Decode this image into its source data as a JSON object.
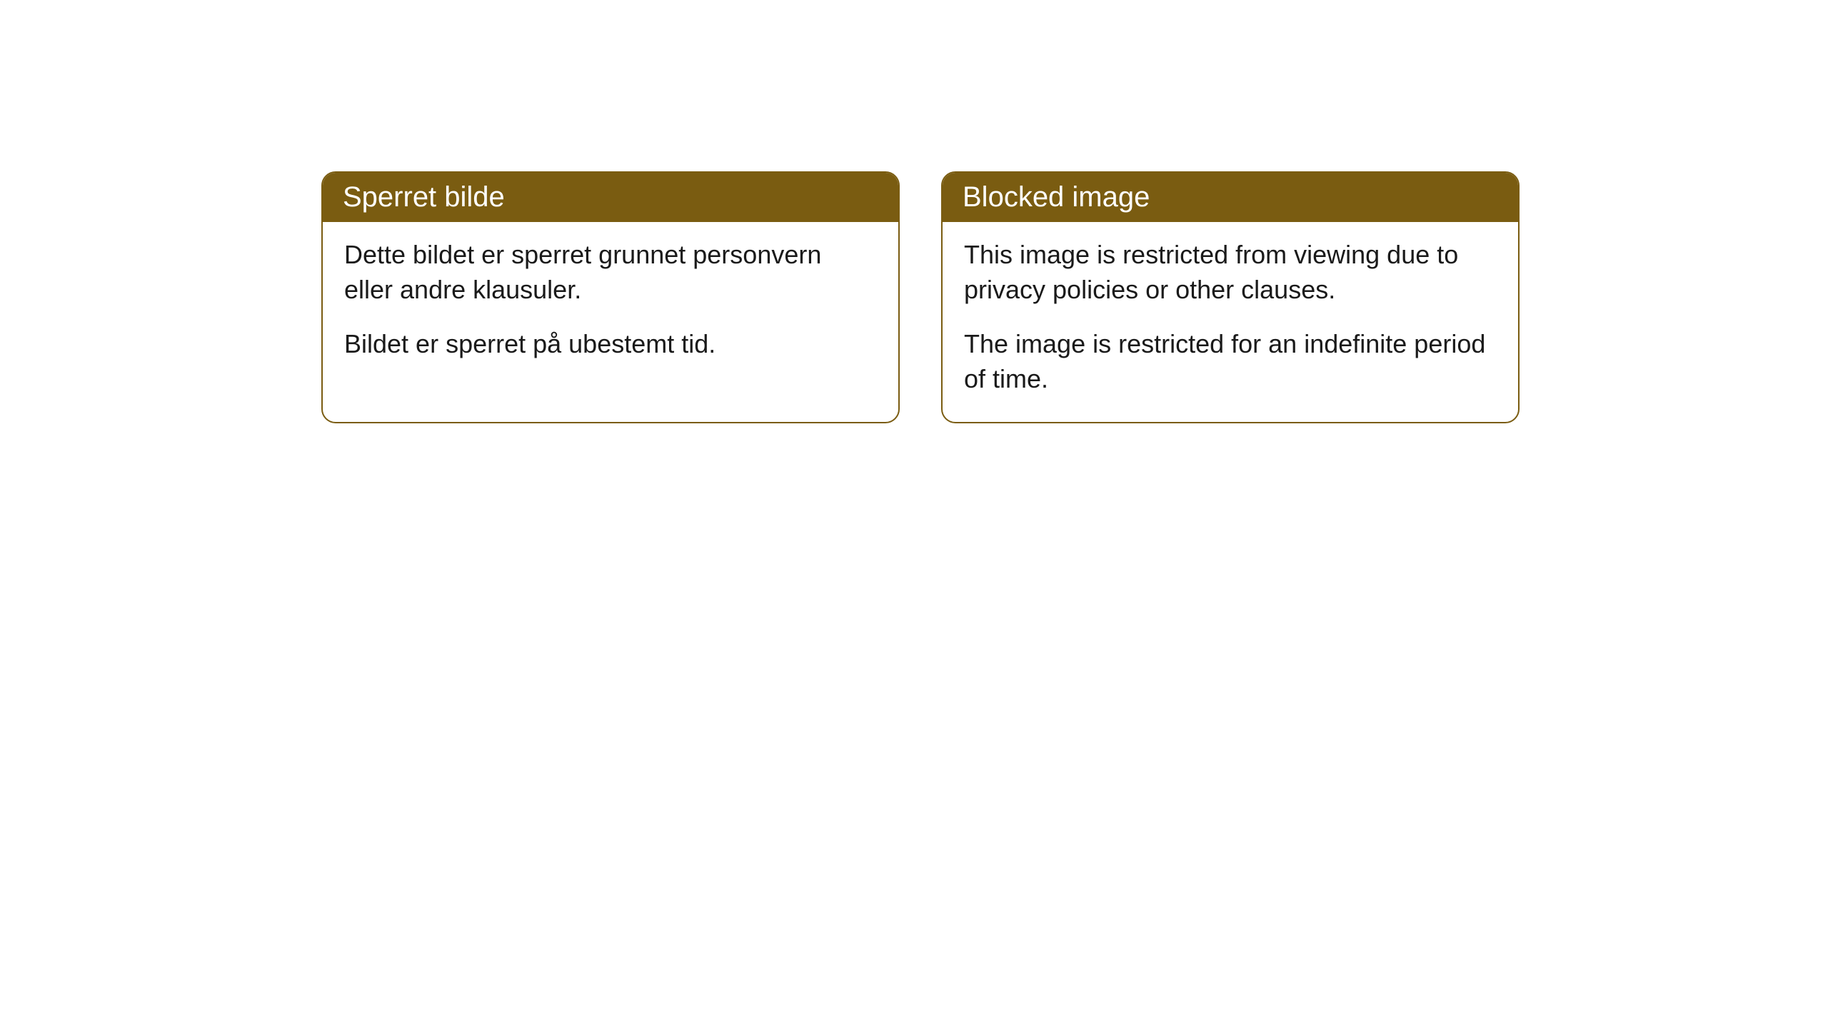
{
  "cards": [
    {
      "title": "Sperret bilde",
      "paragraph1": "Dette bildet er sperret grunnet personvern eller andre klausuler.",
      "paragraph2": "Bildet er sperret på ubestemt tid."
    },
    {
      "title": "Blocked image",
      "paragraph1": "This image is restricted from viewing due to privacy policies or other clauses.",
      "paragraph2": "The image is restricted for an indefinite period of time."
    }
  ],
  "style": {
    "header_background_color": "#7a5c11",
    "header_text_color": "#ffffff",
    "border_color": "#7a5c11",
    "body_background_color": "#ffffff",
    "body_text_color": "#1a1a1a",
    "border_radius": 20,
    "header_fontsize": 40,
    "body_fontsize": 36
  }
}
